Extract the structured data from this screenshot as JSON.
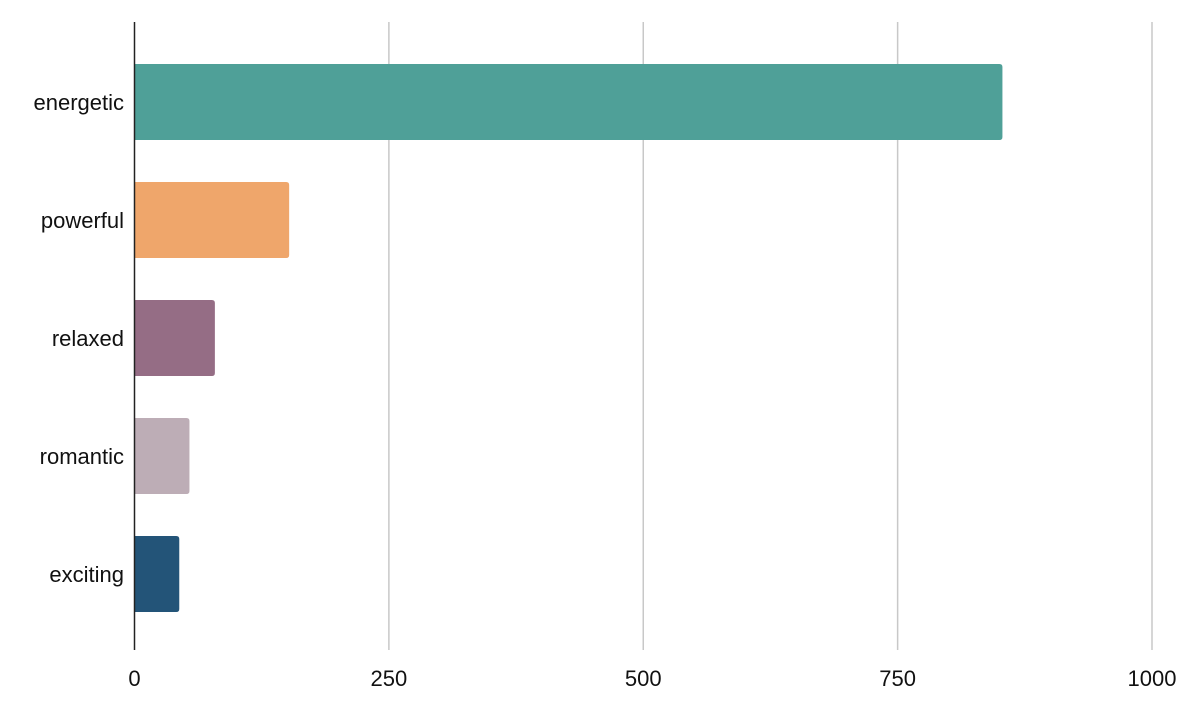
{
  "chart_data": {
    "type": "bar",
    "orientation": "horizontal",
    "categories": [
      "energetic",
      "powerful",
      "relaxed",
      "romantic",
      "exciting"
    ],
    "values": [
      853,
      152,
      79,
      54,
      44
    ],
    "colors": [
      "#4fa098",
      "#efa66b",
      "#956d85",
      "#bdadb6",
      "#235478"
    ],
    "xlim": [
      0,
      1000
    ],
    "xticks": [
      "0",
      "250",
      "500",
      "750",
      "1000"
    ],
    "grid": "vertical",
    "legend": "none",
    "title": "",
    "xlabel": "",
    "ylabel": ""
  }
}
